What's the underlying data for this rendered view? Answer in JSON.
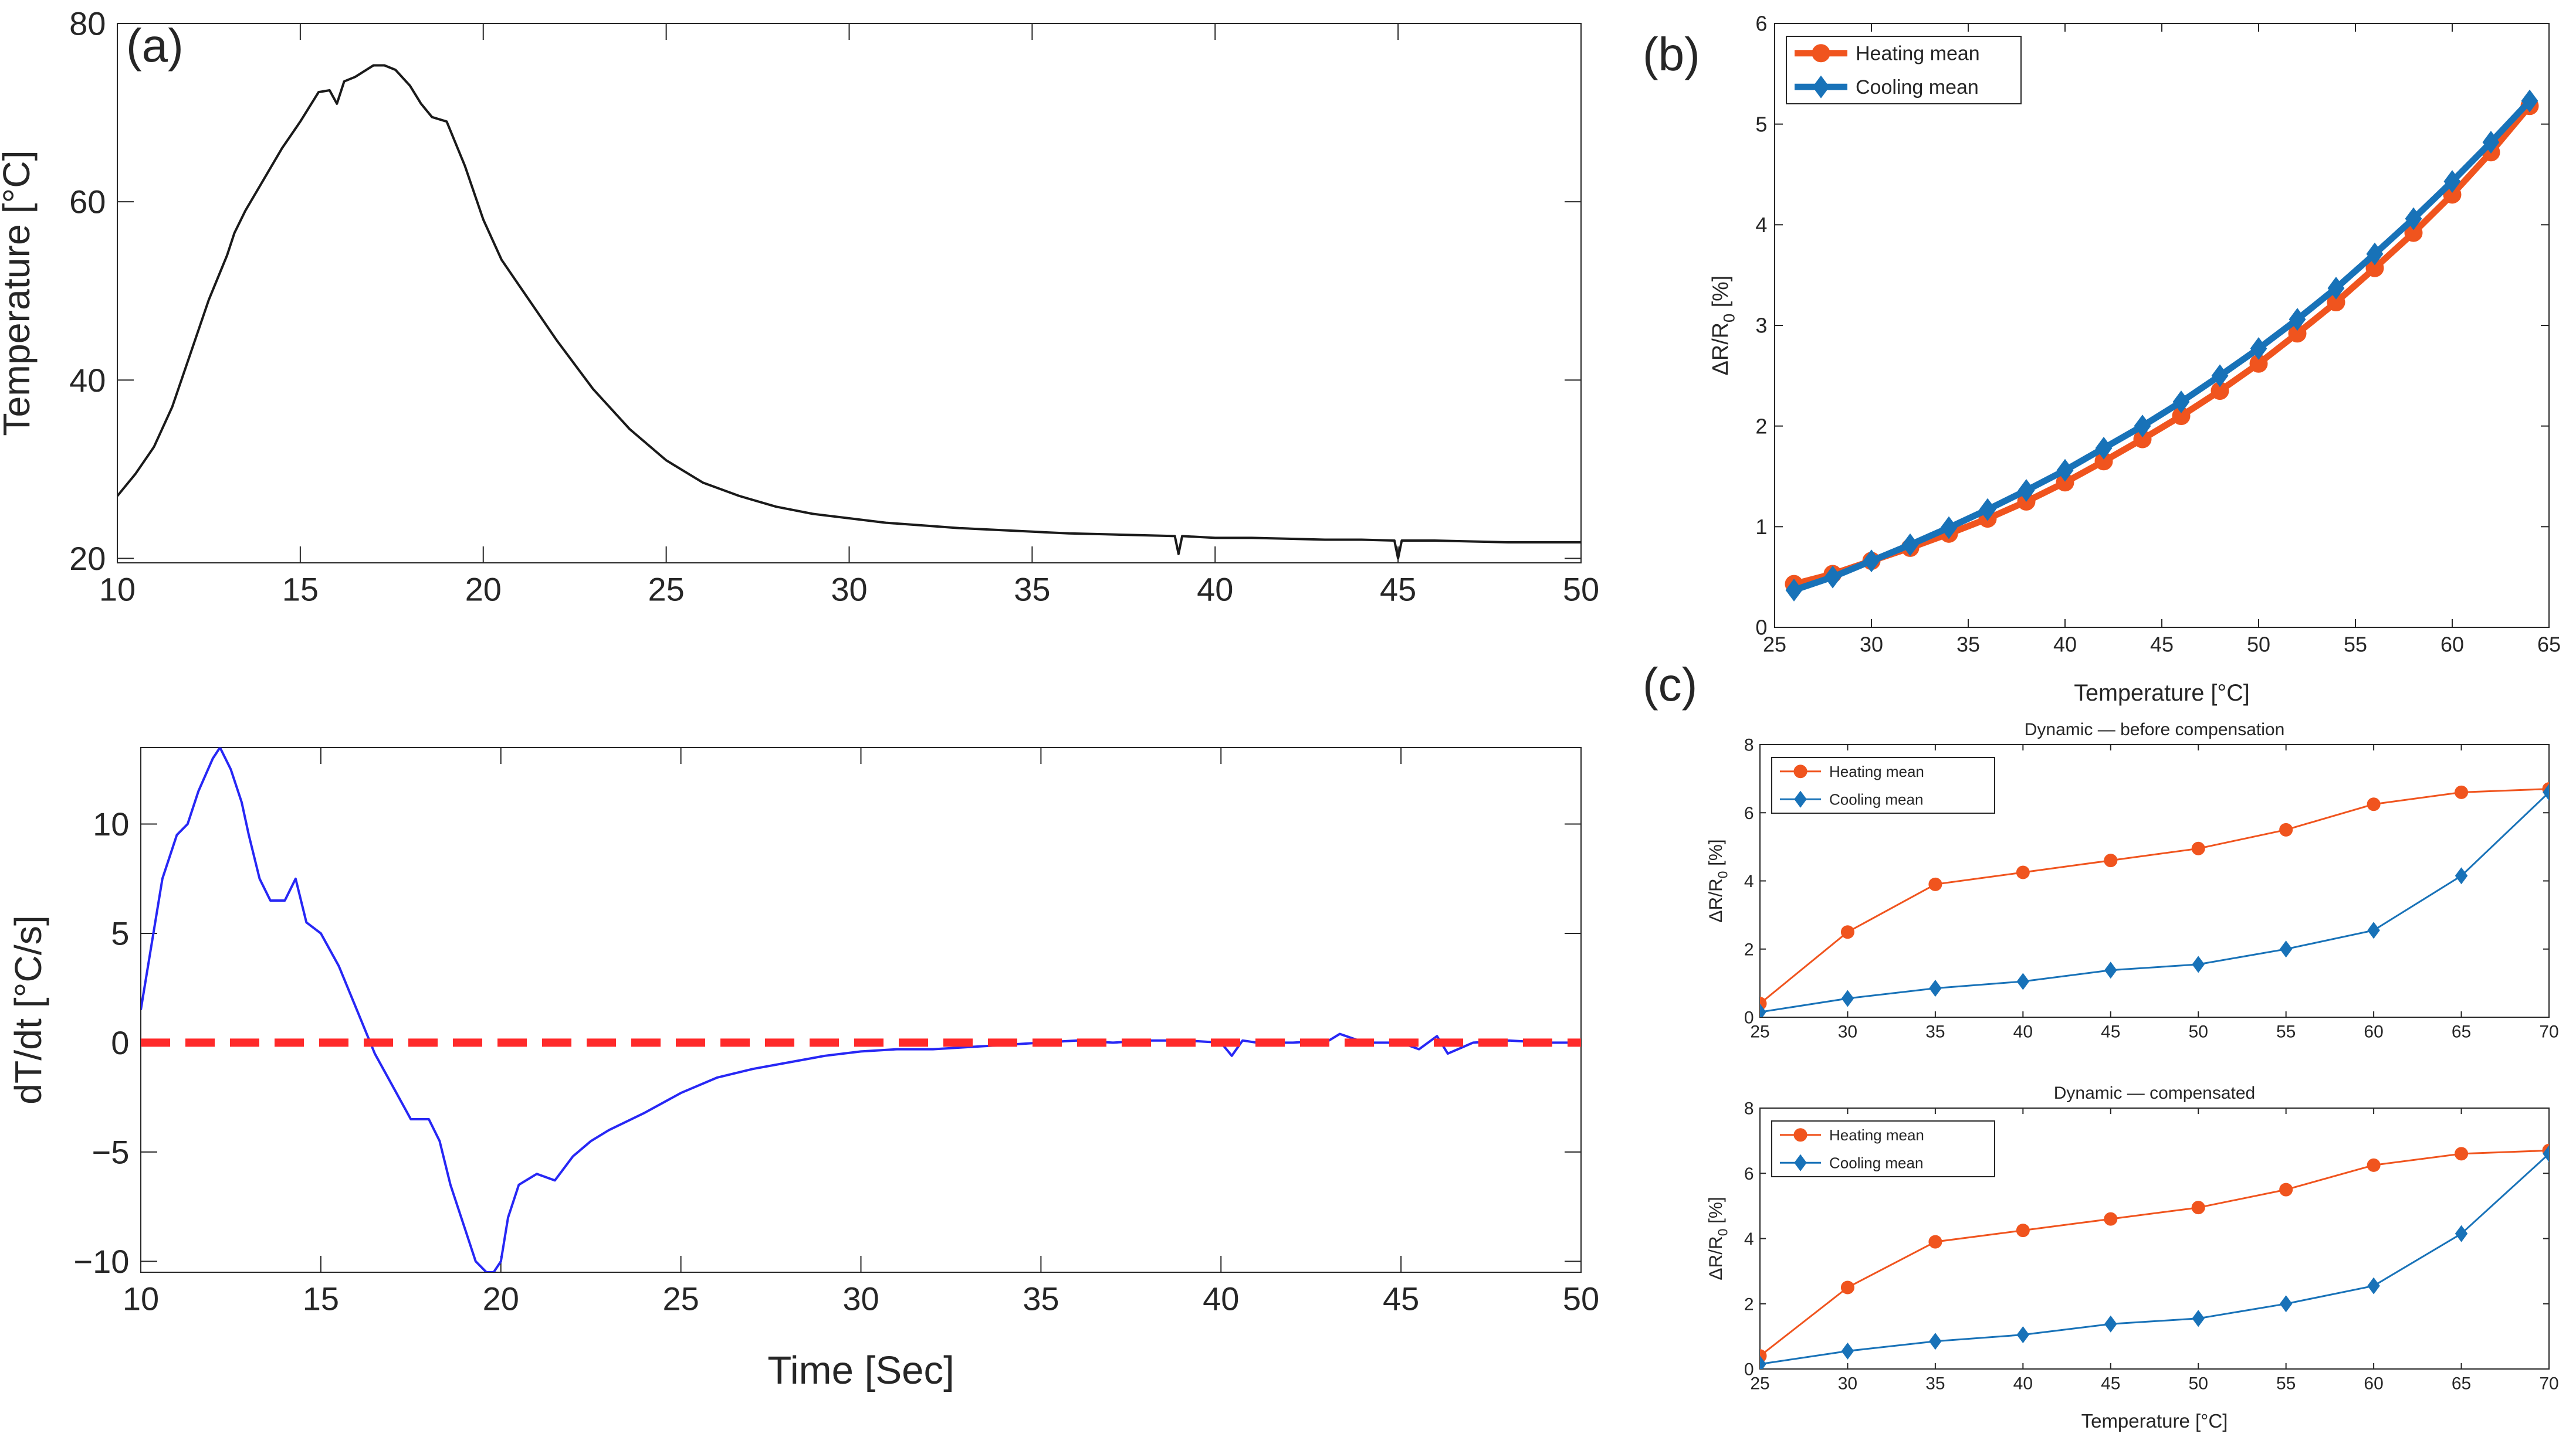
{
  "chart_data": [
    {
      "panel": "a-top",
      "panel_label": "(a)",
      "type": "line",
      "title": "",
      "xlabel": "",
      "ylabel": "Temperature [°C]",
      "xlim": [
        10,
        50
      ],
      "ylim": [
        19.5,
        80
      ],
      "x_ticks": [
        10,
        15,
        20,
        25,
        30,
        35,
        40,
        45,
        50
      ],
      "y_ticks": [
        20,
        40,
        60,
        80
      ],
      "series": [
        {
          "name": "Temperature",
          "color": "#1a1a1a",
          "x": [
            10,
            10.5,
            11,
            11.5,
            12,
            12.5,
            13,
            13.2,
            13.5,
            14,
            14.5,
            15,
            15.5,
            15.8,
            16,
            16.2,
            16.5,
            17,
            17.3,
            17.6,
            18,
            18.3,
            18.6,
            19,
            19.5,
            20,
            20.5,
            21,
            22,
            23,
            24,
            25,
            26,
            27,
            28,
            29,
            30,
            31,
            32,
            33,
            34,
            35,
            36,
            37,
            38,
            38.9,
            39,
            39.1,
            40,
            41,
            42,
            43,
            44,
            44.9,
            45,
            45.1,
            46,
            47,
            48,
            49,
            50
          ],
          "y": [
            27,
            29.5,
            32.5,
            37,
            43,
            49,
            54,
            56.5,
            59,
            62.5,
            66,
            69,
            72.3,
            72.5,
            71,
            73.5,
            74,
            75.3,
            75.3,
            74.8,
            73,
            71,
            69.5,
            69,
            64,
            58,
            53.5,
            50.5,
            44.5,
            39,
            34.5,
            31,
            28.5,
            27,
            25.8,
            25,
            24.5,
            24,
            23.7,
            23.4,
            23.2,
            23,
            22.8,
            22.7,
            22.6,
            22.5,
            20.5,
            22.5,
            22.3,
            22.3,
            22.2,
            22.1,
            22.1,
            22,
            20,
            22,
            22,
            21.9,
            21.8,
            21.8,
            21.8
          ]
        }
      ]
    },
    {
      "panel": "a-bottom",
      "type": "line",
      "title": "",
      "xlabel": "Time [Sec]",
      "ylabel": "dT/dt [°C/s]",
      "xlim": [
        10,
        50
      ],
      "ylim": [
        -10.5,
        13.5
      ],
      "x_ticks": [
        10,
        15,
        20,
        25,
        30,
        35,
        40,
        45,
        50
      ],
      "y_ticks": [
        -10,
        -5,
        0,
        5,
        10
      ],
      "series": [
        {
          "name": "dT/dt",
          "color": "#2727f5",
          "x": [
            10,
            10.3,
            10.6,
            11,
            11.3,
            11.6,
            12,
            12.2,
            12.5,
            12.8,
            13,
            13.3,
            13.6,
            14,
            14.3,
            14.6,
            15,
            15.5,
            16,
            16.5,
            17,
            17.5,
            18,
            18.3,
            18.6,
            19,
            19.3,
            19.6,
            19.8,
            20,
            20.2,
            20.5,
            21,
            21.5,
            22,
            22.5,
            23,
            24,
            25,
            26,
            27,
            28,
            29,
            30,
            31,
            32,
            33,
            34,
            35,
            36,
            37,
            38,
            39,
            40,
            40.3,
            40.6,
            41,
            42,
            43,
            43.3,
            44,
            45,
            45.5,
            46,
            46.3,
            47,
            48,
            49,
            50
          ],
          "y": [
            1.5,
            4.5,
            7.5,
            9.5,
            10,
            11.5,
            13,
            13.5,
            12.5,
            11,
            9.5,
            7.5,
            6.5,
            6.5,
            7.5,
            5.5,
            5,
            3.5,
            1.5,
            -0.5,
            -2,
            -3.5,
            -3.5,
            -4.5,
            -6.5,
            -8.5,
            -10,
            -10.5,
            -10.5,
            -10,
            -8,
            -6.5,
            -6,
            -6.3,
            -5.2,
            -4.5,
            -4,
            -3.2,
            -2.3,
            -1.6,
            -1.2,
            -0.9,
            -0.6,
            -0.4,
            -0.3,
            -0.3,
            -0.2,
            -0.1,
            0,
            0.1,
            0,
            0.1,
            0.1,
            0,
            -0.6,
            0.1,
            0,
            0,
            0.1,
            0.4,
            0,
            0,
            -0.3,
            0.3,
            -0.5,
            0,
            0.1,
            0,
            0
          ]
        },
        {
          "name": "zero line",
          "color": "#ff2a2a",
          "dashed": true,
          "x": [
            10,
            50
          ],
          "y": [
            0,
            0
          ]
        }
      ]
    },
    {
      "panel": "b",
      "panel_label": "(b)",
      "type": "line",
      "title": "",
      "xlabel": "Temperature [°C]",
      "ylabel": "ΔR/R",
      "ylabel_sub": "0",
      "ylabel_suffix": " [%]",
      "xlim": [
        25,
        65
      ],
      "ylim": [
        0,
        6
      ],
      "x_ticks": [
        25,
        30,
        35,
        40,
        45,
        50,
        55,
        60,
        65
      ],
      "y_ticks": [
        0,
        1,
        2,
        3,
        4,
        5,
        6
      ],
      "legend_position": "top-left",
      "categories": [
        26,
        28,
        30,
        32,
        34,
        36,
        38,
        40,
        42,
        44,
        46,
        48,
        50,
        52,
        54,
        56,
        58,
        60,
        62,
        64
      ],
      "series": [
        {
          "name": "Heating mean",
          "color": "#f0541e",
          "marker": "circle",
          "values": [
            0.43,
            0.53,
            0.66,
            0.79,
            0.93,
            1.08,
            1.25,
            1.44,
            1.65,
            1.87,
            2.1,
            2.35,
            2.62,
            2.92,
            3.23,
            3.57,
            3.92,
            4.3,
            4.72,
            5.18
          ]
        },
        {
          "name": "Cooling mean",
          "color": "#1872b8",
          "marker": "diamond",
          "values": [
            0.37,
            0.5,
            0.66,
            0.82,
            0.99,
            1.17,
            1.36,
            1.56,
            1.78,
            2.0,
            2.24,
            2.5,
            2.77,
            3.06,
            3.37,
            3.71,
            4.06,
            4.43,
            4.82,
            5.23
          ]
        }
      ]
    },
    {
      "panel": "c-top",
      "panel_label": "(c)",
      "type": "line",
      "title": "Dynamic — before compensation",
      "xlabel": "",
      "ylabel": "ΔR/R",
      "ylabel_sub": "0",
      "ylabel_suffix": " [%]",
      "xlim": [
        25,
        70
      ],
      "ylim": [
        0,
        8
      ],
      "x_ticks": [
        25,
        30,
        35,
        40,
        45,
        50,
        55,
        60,
        65,
        70
      ],
      "y_ticks": [
        0,
        2,
        4,
        6,
        8
      ],
      "legend_position": "top-left",
      "categories": [
        25,
        30,
        35,
        40,
        45,
        50,
        55,
        60,
        65,
        70
      ],
      "series": [
        {
          "name": "Heating mean",
          "color": "#f0541e",
          "marker": "circle",
          "values": [
            0.4,
            2.5,
            3.9,
            4.25,
            4.6,
            4.95,
            5.5,
            6.25,
            6.6,
            6.7
          ]
        },
        {
          "name": "Cooling mean",
          "color": "#1872b8",
          "marker": "diamond",
          "values": [
            0.15,
            0.55,
            0.85,
            1.05,
            1.38,
            1.55,
            2.0,
            2.55,
            4.15,
            6.6
          ]
        }
      ]
    },
    {
      "panel": "c-bottom",
      "type": "line",
      "title": "Dynamic — compensated",
      "xlabel": "Temperature [°C]",
      "ylabel": "ΔR/R",
      "ylabel_sub": "0",
      "ylabel_suffix": " [%]",
      "xlim": [
        25,
        70
      ],
      "ylim": [
        0,
        8
      ],
      "x_ticks": [
        25,
        30,
        35,
        40,
        45,
        50,
        55,
        60,
        65,
        70
      ],
      "y_ticks": [
        0,
        2,
        4,
        6,
        8
      ],
      "legend_position": "top-left",
      "categories": [
        25,
        30,
        35,
        40,
        45,
        50,
        55,
        60,
        65,
        70
      ],
      "series": [
        {
          "name": "Heating mean",
          "color": "#f0541e",
          "marker": "circle",
          "values": [
            0.4,
            2.5,
            3.9,
            4.25,
            4.6,
            4.95,
            5.5,
            6.25,
            6.6,
            6.7
          ]
        },
        {
          "name": "Cooling mean",
          "color": "#1872b8",
          "marker": "diamond",
          "values": [
            0.15,
            0.55,
            0.85,
            1.05,
            1.38,
            1.55,
            2.0,
            2.55,
            4.15,
            6.6
          ]
        }
      ]
    }
  ]
}
